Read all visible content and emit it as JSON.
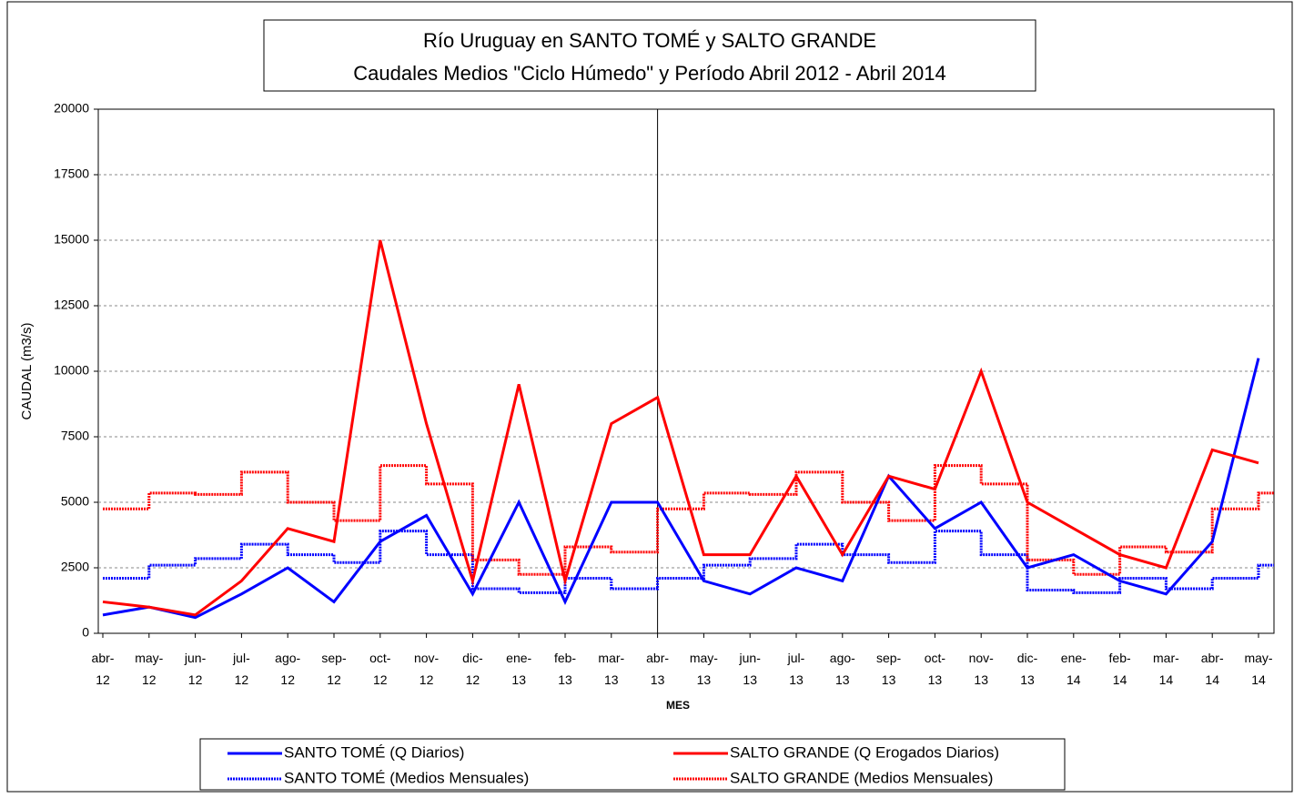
{
  "chart_data": {
    "type": "line",
    "title": "Río Uruguay en SANTO TOMÉ y SALTO GRANDE",
    "subtitle": "Caudales Medios \"Ciclo Húmedo\" y Período Abril 2012 - Abril 2014",
    "y_label": "CAUDAL (m3/s)",
    "x_label": "MES",
    "categories": [
      "abr-12",
      "may-12",
      "jun-12",
      "jul-12",
      "ago-12",
      "sep-12",
      "oct-12",
      "nov-12",
      "dic-12",
      "ene-13",
      "feb-13",
      "mar-13",
      "abr-13",
      "may-13",
      "jun-13",
      "jul-13",
      "ago-13",
      "sep-13",
      "oct-13",
      "nov-13",
      "dic-13",
      "ene-14",
      "feb-14",
      "mar-14",
      "abr-14",
      "may-14"
    ],
    "ylim": [
      0,
      20000
    ],
    "yticks": [
      0,
      2500,
      5000,
      7500,
      10000,
      12500,
      15000,
      17500,
      20000
    ],
    "grid": true,
    "series": [
      {
        "name": "SANTO TOMÉ (Q Diarios)",
        "color": "#0000ff",
        "style": "solid",
        "values": [
          700,
          1000,
          600,
          1500,
          2500,
          1200,
          3500,
          4500,
          1500,
          5000,
          1200,
          5000,
          5000,
          2000,
          1500,
          2500,
          2000,
          6000,
          4000,
          5000,
          2500,
          3000,
          2000,
          1500,
          3500,
          10500
        ]
      },
      {
        "name": "SALTO GRANDE (Q Erogados Diarios)",
        "color": "#ff0000",
        "style": "solid",
        "values": [
          1200,
          1000,
          700,
          2000,
          4000,
          3500,
          15000,
          8000,
          2000,
          9500,
          2000,
          8000,
          9000,
          3000,
          3000,
          6000,
          3000,
          6000,
          5500,
          10000,
          5000,
          4000,
          3000,
          2500,
          7000,
          6500
        ]
      },
      {
        "name": "SANTO TOMÉ (Medios Mensuales)",
        "color": "#0000ff",
        "style": "step",
        "values": [
          2100,
          2600,
          2850,
          3400,
          3000,
          2700,
          3900,
          3000,
          1700,
          1550,
          2100,
          1700,
          2100,
          2600,
          2850,
          3400,
          3000,
          2700,
          3900,
          3000,
          1650,
          1550,
          2100,
          1700,
          2100,
          2600
        ]
      },
      {
        "name": "SALTO GRANDE (Medios Mensuales)",
        "color": "#ff0000",
        "style": "step",
        "values": [
          4750,
          5350,
          5300,
          6150,
          5000,
          4300,
          6400,
          5700,
          2800,
          2250,
          3300,
          3100,
          4750,
          5350,
          5300,
          6150,
          5000,
          4300,
          6400,
          5700,
          2800,
          2250,
          3300,
          3100,
          4750,
          5350
        ]
      }
    ]
  }
}
